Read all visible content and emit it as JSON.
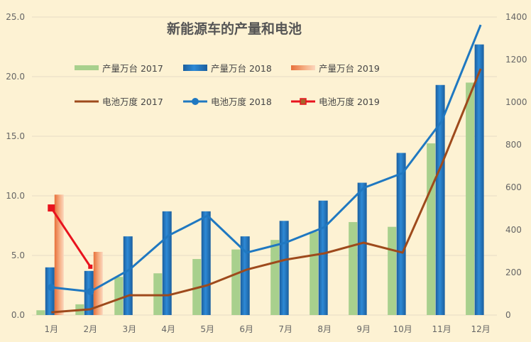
{
  "chart_data": {
    "type": "bar+line",
    "title": "新能源车的产量和电池",
    "categories": [
      "1月",
      "2月",
      "3月",
      "4月",
      "5月",
      "6月",
      "7月",
      "8月",
      "9月",
      "10月",
      "11月",
      "12月"
    ],
    "y_left": {
      "range": [
        0,
        25
      ],
      "ticks": [
        "0.0",
        "5.0",
        "10.0",
        "15.0",
        "20.0",
        "25.0"
      ]
    },
    "y_right": {
      "range": [
        0,
        1400
      ],
      "ticks": [
        "0",
        "200",
        "400",
        "600",
        "800",
        "1000",
        "1200",
        "1400"
      ]
    },
    "grid": true,
    "legend_position": "top",
    "bar_series": [
      {
        "name": "产量万台 2017",
        "color": "#a8d08d",
        "values": [
          0.4,
          0.9,
          3.2,
          3.5,
          4.7,
          5.5,
          6.3,
          7.0,
          7.8,
          7.4,
          14.4,
          19.5
        ]
      },
      {
        "name": "产量万台 2018",
        "color": "#1f72b8",
        "values": [
          4.0,
          3.7,
          6.6,
          8.7,
          8.7,
          6.6,
          7.9,
          9.6,
          11.1,
          13.6,
          19.3,
          22.7
        ]
      },
      {
        "name": "产量万台 2019",
        "color": "#f4a070",
        "values": [
          10.1,
          5.3,
          null,
          null,
          null,
          null,
          null,
          null,
          null,
          null,
          null,
          null
        ]
      }
    ],
    "line_series": [
      {
        "name": "电池万度 2017",
        "color": "#9e4a1c",
        "axis": "right",
        "values": [
          13,
          27,
          93,
          93,
          140,
          213,
          260,
          290,
          340,
          293,
          707,
          1157
        ]
      },
      {
        "name": "电池万度 2018",
        "color": "#1f78c1",
        "axis": "right",
        "marker": "circle",
        "values": [
          130,
          110,
          213,
          373,
          467,
          293,
          340,
          413,
          597,
          667,
          910,
          1363
        ]
      },
      {
        "name": "电池万度 2019",
        "color": "#e8131e",
        "axis": "right",
        "marker": "square",
        "values": [
          503,
          227,
          null,
          null,
          null,
          null,
          null,
          null,
          null,
          null,
          null,
          null
        ]
      }
    ]
  }
}
